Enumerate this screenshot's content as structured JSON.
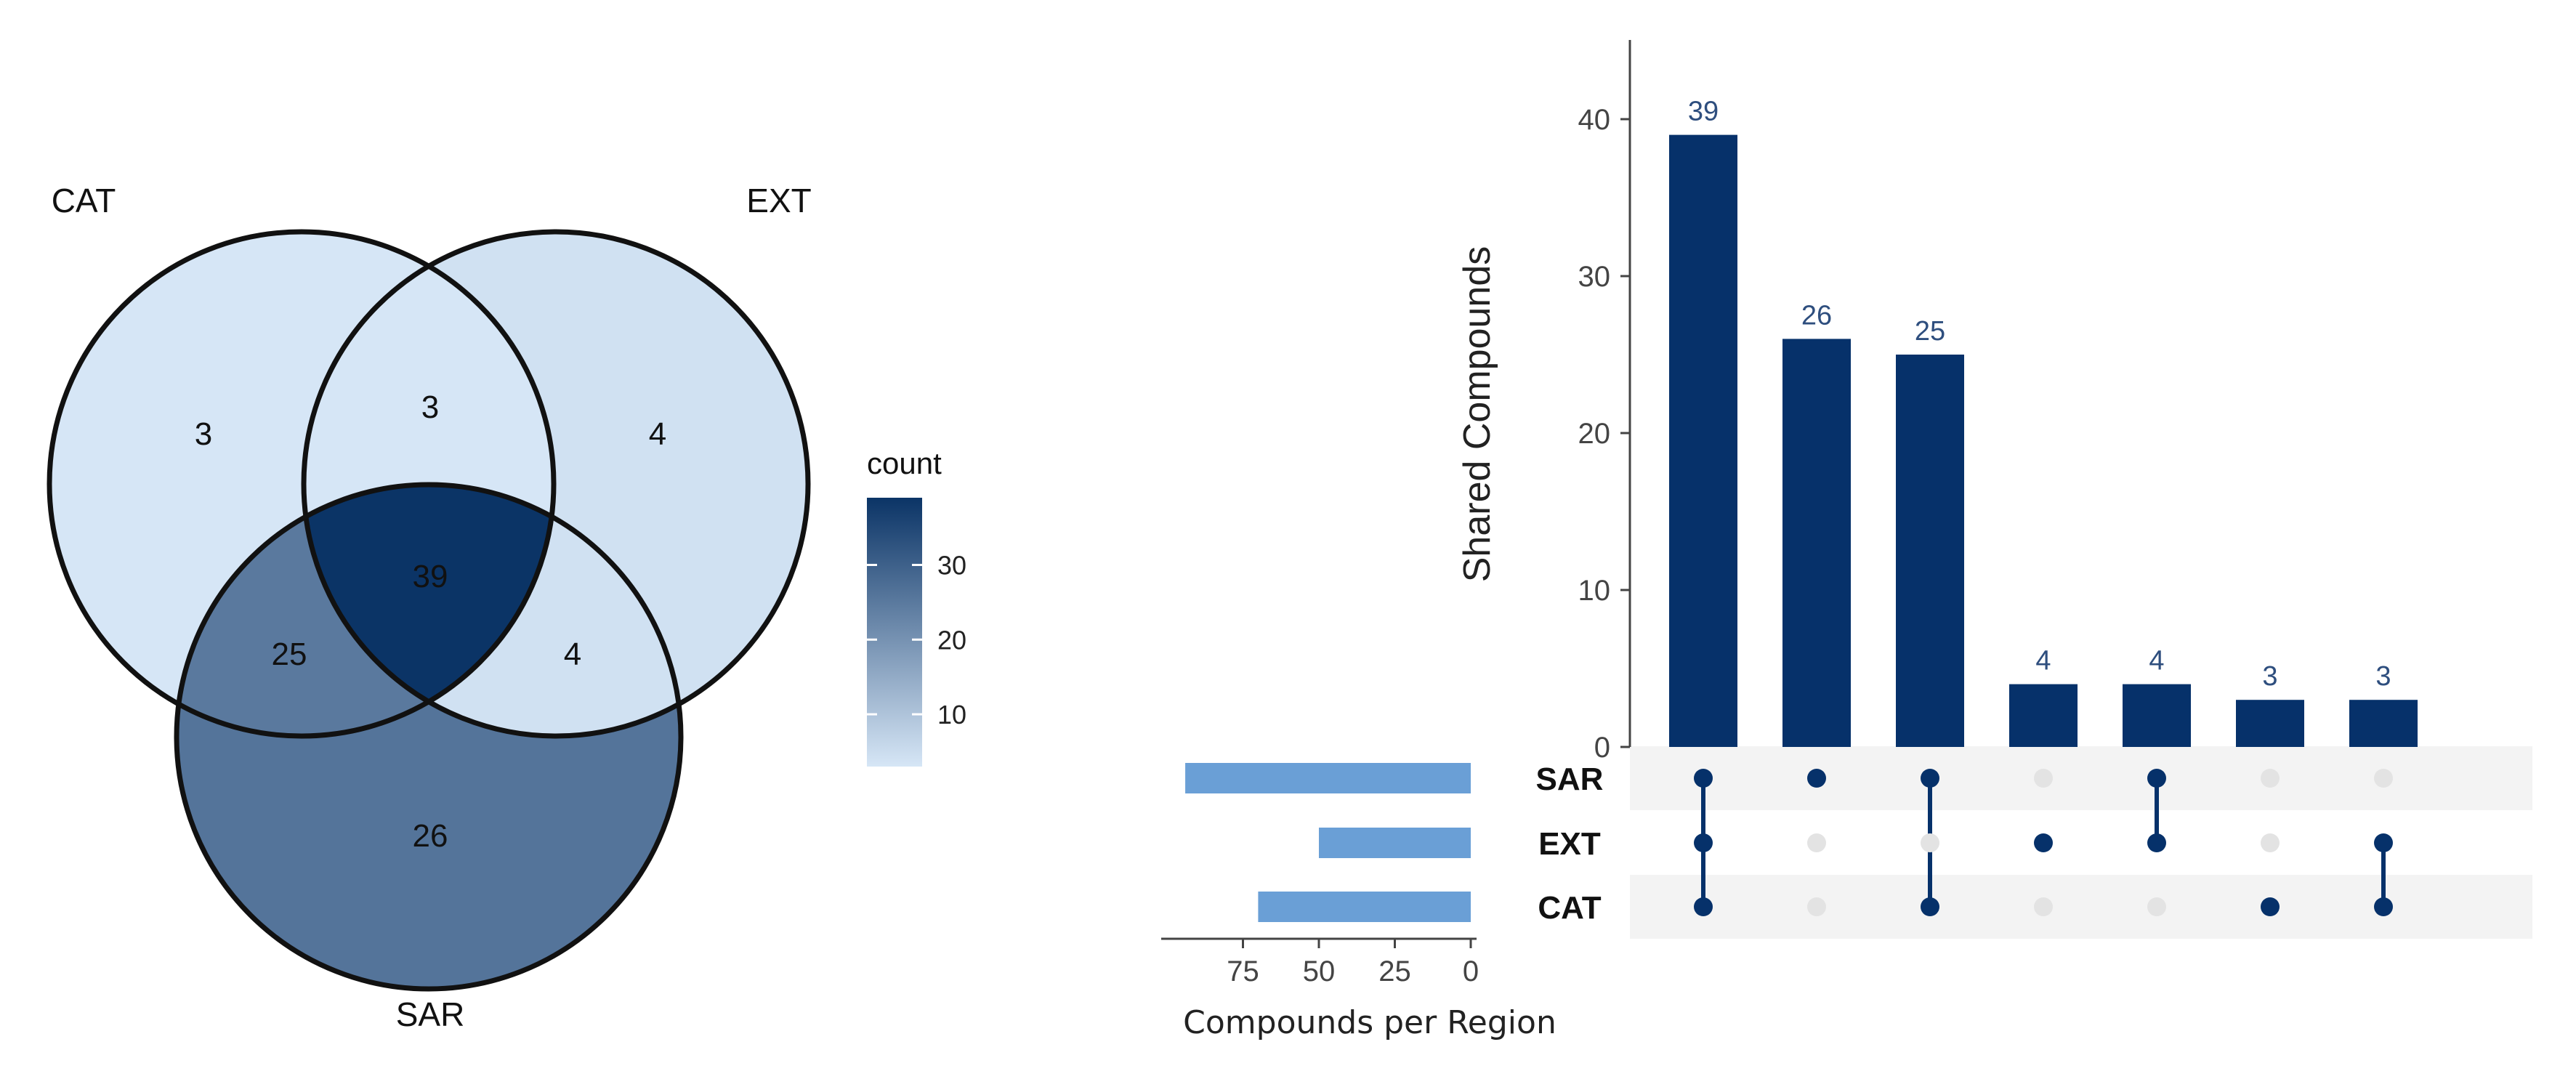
{
  "venn": {
    "set_labels": {
      "cat": "CAT",
      "ext": "EXT",
      "sar": "SAR"
    },
    "regions": {
      "cat_only": 3,
      "ext_only": 4,
      "sar_only": 26,
      "cat_ext": 3,
      "cat_sar": 25,
      "ext_sar": 4,
      "cat_ext_sar": 39
    },
    "legend": {
      "title": "count",
      "ticks": [
        "30",
        "20",
        "10"
      ],
      "tick_values": [
        30,
        20,
        10
      ],
      "range": [
        3,
        39
      ],
      "color_low": "#d6e6f6",
      "color_high": "#0b3466"
    }
  },
  "chart_data": {
    "type": "bar",
    "ylabel": "Shared Compounds",
    "ylim": [
      0,
      45
    ],
    "yticks": [
      "40",
      "30",
      "20",
      "10",
      "0"
    ],
    "ytick_values": [
      40,
      30,
      20,
      10,
      0
    ],
    "bar_color": "#06316a",
    "label_color": "#2e4e7e",
    "sets": [
      "SAR",
      "EXT",
      "CAT"
    ],
    "intersections": [
      {
        "value": 39,
        "label": "39",
        "members": [
          "SAR",
          "EXT",
          "CAT"
        ]
      },
      {
        "value": 26,
        "label": "26",
        "members": [
          "SAR"
        ]
      },
      {
        "value": 25,
        "label": "25",
        "members": [
          "SAR",
          "CAT"
        ]
      },
      {
        "value": 4,
        "label": "4",
        "members": [
          "EXT"
        ]
      },
      {
        "value": 4,
        "label": "4",
        "members": [
          "SAR",
          "EXT"
        ]
      },
      {
        "value": 3,
        "label": "3",
        "members": [
          "CAT"
        ]
      },
      {
        "value": 3,
        "label": "3",
        "members": [
          "EXT",
          "CAT"
        ]
      }
    ],
    "set_sizes": {
      "xlabel": "Compounds per Region",
      "xticks": [
        "75",
        "50",
        "25",
        "0"
      ],
      "xtick_values": [
        75,
        50,
        25,
        0
      ],
      "xlim": [
        0,
        100
      ],
      "values": {
        "SAR": 94,
        "EXT": 50,
        "CAT": 70
      },
      "bar_color": "#6a9fd6"
    },
    "dot_active_color": "#06316a",
    "dot_inactive_color": "#e3e3e3",
    "stripe_color": "#f3f3f3"
  }
}
